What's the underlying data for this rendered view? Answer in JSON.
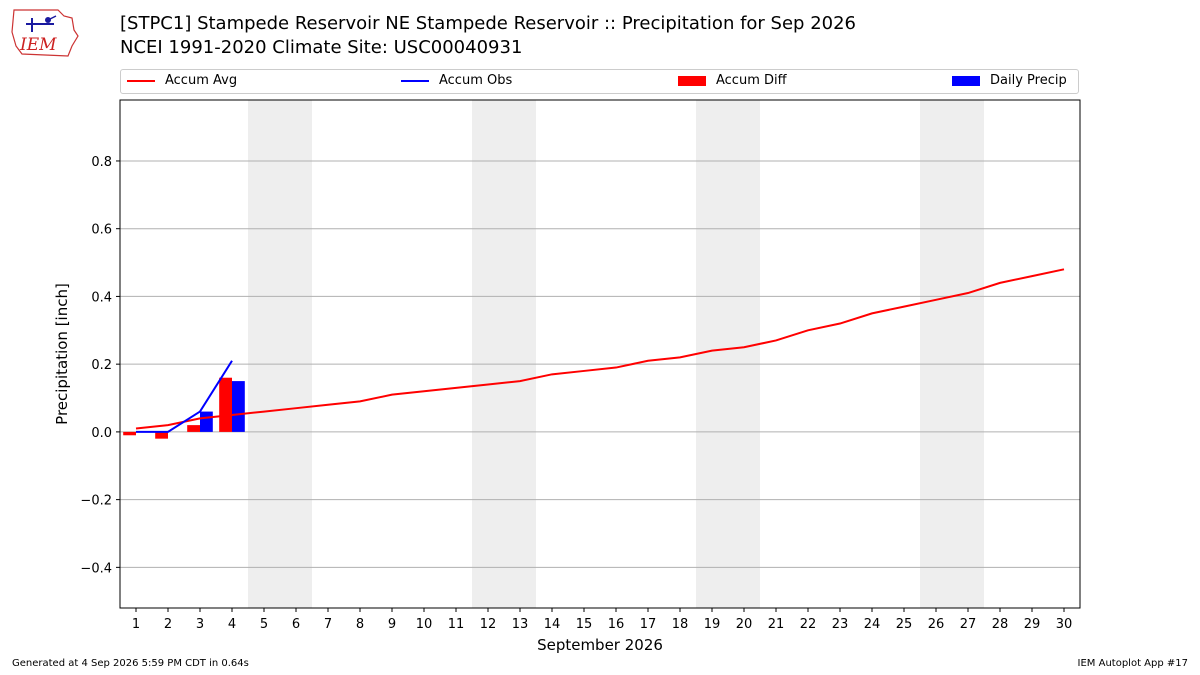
{
  "header": {
    "logo_text": "IEM",
    "title_line1": "[STPC1] Stampede Reservoir  NE Stampede Reservoir :: Precipitation for Sep 2026",
    "title_line2": "NCEI 1991-2020 Climate Site: USC00040931"
  },
  "legend": {
    "items": [
      {
        "label": "Accum Avg",
        "kind": "line",
        "color": "#ff0000"
      },
      {
        "label": "Accum Obs",
        "kind": "line",
        "color": "#0000ff"
      },
      {
        "label": "Accum Diff",
        "kind": "patch",
        "color": "#ff0000"
      },
      {
        "label": "Daily Precip",
        "kind": "patch",
        "color": "#0000ff"
      }
    ]
  },
  "chart_data": {
    "type": "bar",
    "xlabel": "September 2026",
    "ylabel": "Precipitation [inch]",
    "xlim": [
      0.5,
      30.5
    ],
    "ylim": [
      -0.52,
      0.98
    ],
    "x_ticks": [
      1,
      2,
      3,
      4,
      5,
      6,
      7,
      8,
      9,
      10,
      11,
      12,
      13,
      14,
      15,
      16,
      17,
      18,
      19,
      20,
      21,
      22,
      23,
      24,
      25,
      26,
      27,
      28,
      29,
      30
    ],
    "y_ticks": [
      -0.4,
      -0.2,
      0.0,
      0.2,
      0.4,
      0.6,
      0.8
    ],
    "y_tick_labels": [
      "−0.4",
      "−0.2",
      "0.0",
      "0.2",
      "0.4",
      "0.6",
      "0.8"
    ],
    "grid": "horizontal",
    "weekend_shading": [
      [
        4.5,
        6.5
      ],
      [
        11.5,
        13.5
      ],
      [
        18.5,
        20.5
      ],
      [
        25.5,
        27.5
      ]
    ],
    "shading_color": "#eeeeee",
    "series": [
      {
        "name": "Accum Avg",
        "kind": "line",
        "color": "#ff0000",
        "x": [
          1,
          2,
          3,
          4,
          5,
          6,
          7,
          8,
          9,
          10,
          11,
          12,
          13,
          14,
          15,
          16,
          17,
          18,
          19,
          20,
          21,
          22,
          23,
          24,
          25,
          26,
          27,
          28,
          29,
          30
        ],
        "values": [
          0.01,
          0.02,
          0.04,
          0.05,
          0.06,
          0.07,
          0.08,
          0.09,
          0.11,
          0.12,
          0.13,
          0.14,
          0.15,
          0.17,
          0.18,
          0.19,
          0.21,
          0.22,
          0.24,
          0.25,
          0.27,
          0.3,
          0.32,
          0.35,
          0.37,
          0.39,
          0.41,
          0.44,
          0.46,
          0.48
        ]
      },
      {
        "name": "Accum Obs",
        "kind": "line",
        "color": "#0000ff",
        "x": [
          1,
          2,
          3,
          4
        ],
        "values": [
          0.0,
          0.0,
          0.06,
          0.21
        ]
      },
      {
        "name": "Accum Diff",
        "kind": "bar",
        "color": "#ff0000",
        "x": [
          1,
          2,
          3,
          4
        ],
        "values": [
          -0.01,
          -0.02,
          0.02,
          0.16
        ]
      },
      {
        "name": "Daily Precip",
        "kind": "bar",
        "color": "#0000ff",
        "x": [
          1,
          2,
          3,
          4
        ],
        "values": [
          0.0,
          0.0,
          0.06,
          0.15
        ]
      }
    ]
  },
  "footer": {
    "generated": "Generated at 4 Sep 2026 5:59 PM CDT in 0.64s",
    "app": "IEM Autoplot App #17"
  }
}
